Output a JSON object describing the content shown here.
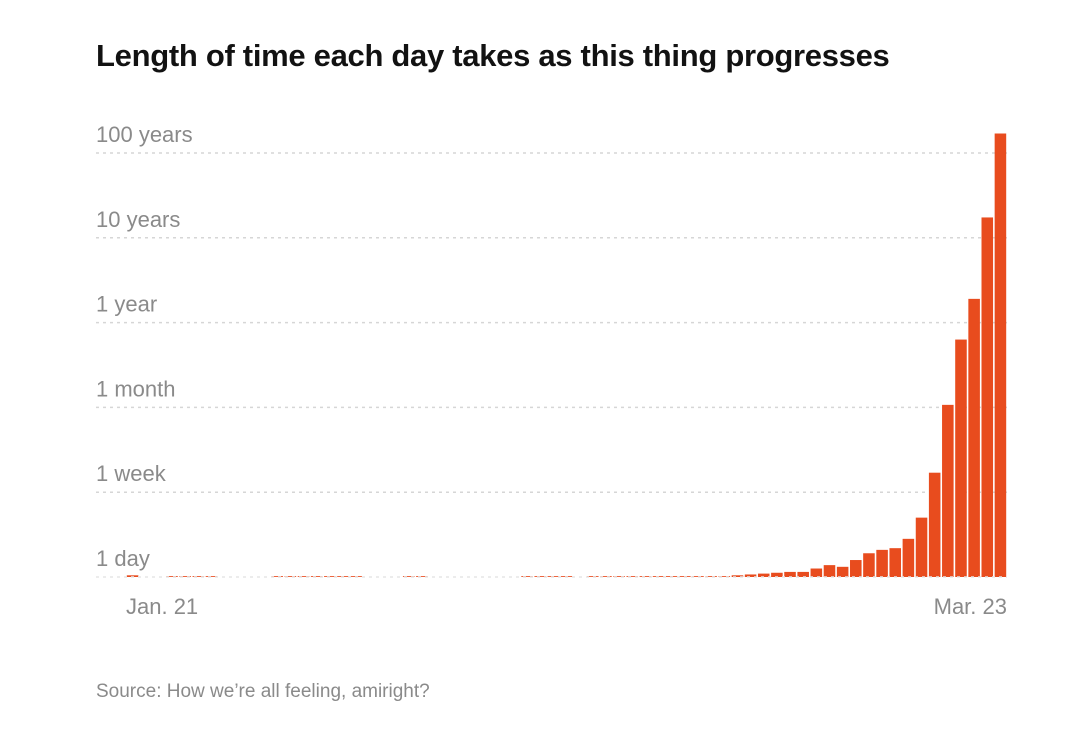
{
  "chart_data": {
    "type": "bar",
    "title": "Length of time each day takes as this thing progresses",
    "source": "Source: How we’re all feeling, amiright?",
    "y_scale": "log",
    "y_ticks": [
      {
        "label": "1 day",
        "value": 0
      },
      {
        "label": "1 week",
        "value": 1
      },
      {
        "label": "1 month",
        "value": 2
      },
      {
        "label": "1 year",
        "value": 3
      },
      {
        "label": "10 years",
        "value": 4
      },
      {
        "label": "100 years",
        "value": 5
      }
    ],
    "ylim": [
      0,
      5
    ],
    "grid": true,
    "x_labels": {
      "start": "Jan. 21",
      "end": "Mar. 23"
    },
    "bar_color": "#e84c1e",
    "values": [
      0.02,
      0,
      0,
      0.01,
      0.01,
      0.01,
      0.01,
      0,
      0,
      0,
      0,
      0.01,
      0.01,
      0.01,
      0.01,
      0.01,
      0.01,
      0.01,
      0,
      0,
      0,
      0.01,
      0.01,
      0,
      0,
      0,
      0,
      0,
      0,
      0,
      0.01,
      0.01,
      0.01,
      0.01,
      0,
      0.01,
      0.01,
      0.01,
      0.01,
      0.01,
      0.01,
      0.01,
      0.01,
      0.01,
      0.01,
      0.01,
      0.02,
      0.03,
      0.04,
      0.05,
      0.06,
      0.06,
      0.1,
      0.14,
      0.12,
      0.2,
      0.28,
      0.32,
      0.34,
      0.45,
      0.7,
      1.23,
      2.03,
      2.8,
      3.28,
      4.24,
      5.23
    ]
  }
}
